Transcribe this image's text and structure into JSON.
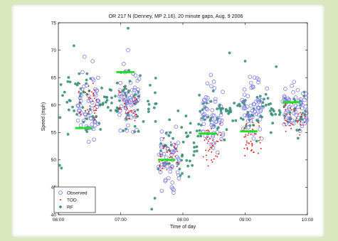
{
  "chart_data": {
    "type": "scatter",
    "title": "OR 217 N (Denney, MP 2.16), 20 minute gaps, Aug. 9 2006",
    "xlabel": "Time of day",
    "ylabel": "Speed (mph)",
    "xlim": [
      6.0,
      10.0
    ],
    "ylim": [
      40,
      75
    ],
    "grid": false,
    "legend_position": "bottom-left",
    "x_ticks": [
      {
        "value": 6.0,
        "label": "06:00"
      },
      {
        "value": 7.0,
        "label": "07:00"
      },
      {
        "value": 8.0,
        "label": "08:00"
      },
      {
        "value": 9.0,
        "label": "09:00"
      },
      {
        "value": 10.0,
        "label": "10:00"
      }
    ],
    "y_ticks": [
      40,
      45,
      50,
      55,
      60,
      65,
      70,
      75
    ],
    "colors": {
      "observed": "#7a7adf",
      "tod": "#d62020",
      "rf": "#3a8f78",
      "green_segments": "#22dd22"
    },
    "legend": [
      "Observed",
      "TOD",
      "RF"
    ],
    "series": [
      {
        "name": "Observed",
        "marker": "open-circle",
        "clusters": [
          {
            "x_range": [
              6.3,
              6.65
            ],
            "y_mean": 60.0,
            "y_spread": 4.5,
            "count": 55
          },
          {
            "x_range": [
              6.95,
              7.3
            ],
            "y_mean": 61.0,
            "y_spread": 4.5,
            "count": 55
          },
          {
            "x_range": [
              7.6,
              7.95
            ],
            "y_mean": 50.0,
            "y_spread": 4.5,
            "count": 50
          },
          {
            "x_range": [
              8.3,
              8.65
            ],
            "y_mean": 57.5,
            "y_spread": 5.0,
            "count": 55
          },
          {
            "x_range": [
              8.95,
              9.3
            ],
            "y_mean": 59.5,
            "y_spread": 4.5,
            "count": 55
          },
          {
            "x_range": [
              9.6,
              10.0
            ],
            "y_mean": 59.0,
            "y_spread": 3.5,
            "count": 60
          }
        ],
        "outliers": [
          [
            6.42,
            68.8
          ],
          [
            6.55,
            68.0
          ],
          [
            7.12,
            70.0
          ],
          [
            7.05,
            67.5
          ],
          [
            7.82,
            45.0
          ],
          [
            7.85,
            44.0
          ],
          [
            8.45,
            65.5
          ],
          [
            9.15,
            65.0
          ],
          [
            9.35,
            63.0
          ],
          [
            9.75,
            63.5
          ]
        ]
      },
      {
        "name": "TOD",
        "marker": "dot",
        "clusters": [
          {
            "x_range": [
              6.32,
              6.62
            ],
            "y_mean": 60.0,
            "y_spread": 3.0,
            "count": 40
          },
          {
            "x_range": [
              6.97,
              7.27
            ],
            "y_mean": 59.5,
            "y_spread": 3.0,
            "count": 40
          },
          {
            "x_range": [
              7.62,
              7.92
            ],
            "y_mean": 50.5,
            "y_spread": 3.0,
            "count": 38
          },
          {
            "x_range": [
              8.32,
              8.62
            ],
            "y_mean": 52.5,
            "y_spread": 3.5,
            "count": 40
          },
          {
            "x_range": [
              8.97,
              9.27
            ],
            "y_mean": 54.0,
            "y_spread": 3.0,
            "count": 40
          },
          {
            "x_range": [
              9.62,
              9.98
            ],
            "y_mean": 57.5,
            "y_spread": 2.5,
            "count": 40
          }
        ]
      },
      {
        "name": "RF",
        "marker": "filled-circle",
        "clusters": [
          {
            "x_range": [
              6.0,
              7.6
            ],
            "y_mean": 60.5,
            "y_spread": 4.5,
            "count": 110
          },
          {
            "x_range": [
              7.6,
              8.25
            ],
            "y_mean": 52.0,
            "y_spread": 5.0,
            "count": 45
          },
          {
            "x_range": [
              8.25,
              10.0
            ],
            "y_mean": 58.5,
            "y_spread": 3.5,
            "count": 120
          }
        ],
        "outliers": [
          [
            6.02,
            49.0
          ],
          [
            6.05,
            48.5
          ],
          [
            6.25,
            70.8
          ],
          [
            7.12,
            74.0
          ],
          [
            7.55,
            43.0
          ],
          [
            7.5,
            41.0
          ],
          [
            8.05,
            58.0
          ],
          [
            8.75,
            69.5
          ],
          [
            9.0,
            68.0
          ],
          [
            9.5,
            67.0
          ]
        ]
      }
    ],
    "segments": [
      {
        "x": [
          6.27,
          6.55
        ],
        "y": 55.8
      },
      {
        "x": [
          6.93,
          7.22
        ],
        "y": 66.0
      },
      {
        "x": [
          7.6,
          7.88
        ],
        "y": 50.0
      },
      {
        "x": [
          8.25,
          8.55
        ],
        "y": 54.8
      },
      {
        "x": [
          8.92,
          9.2
        ],
        "y": 55.2
      },
      {
        "x": [
          9.6,
          9.88
        ],
        "y": 60.5
      }
    ]
  }
}
